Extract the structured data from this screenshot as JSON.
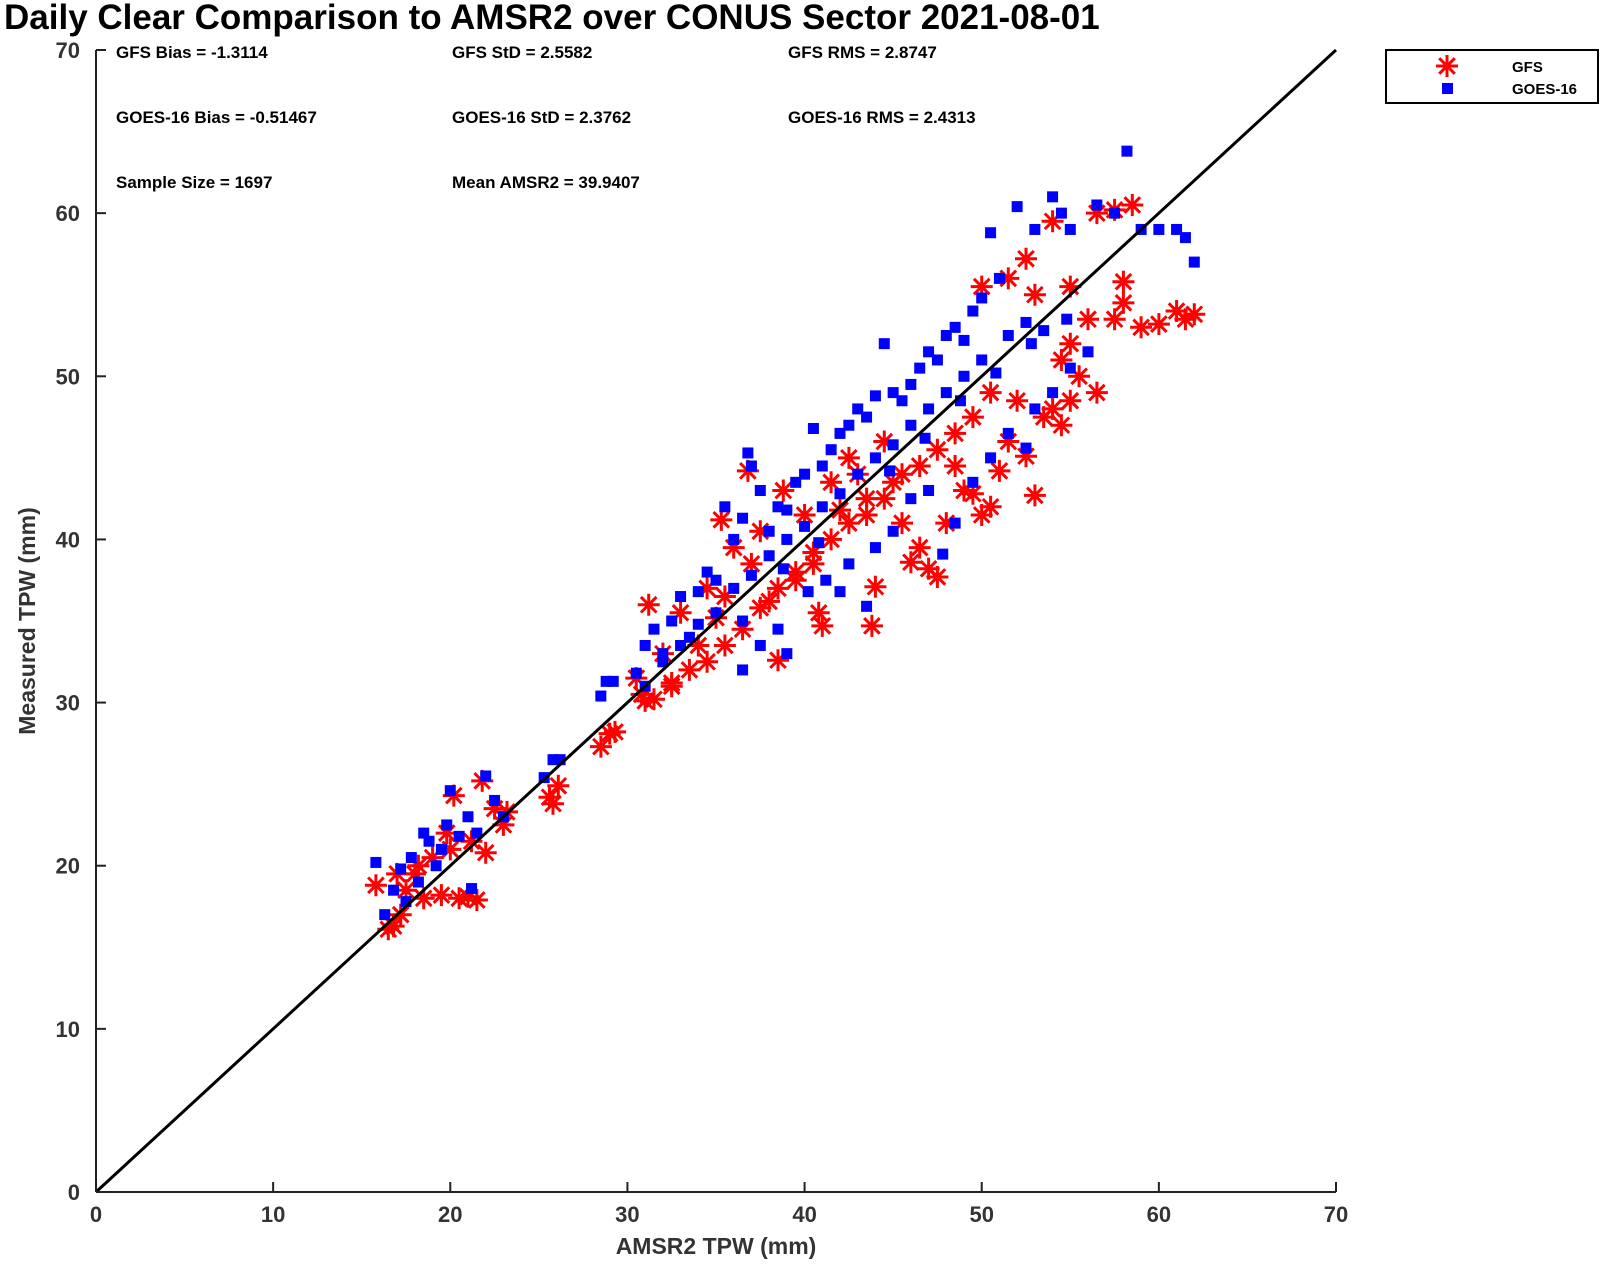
{
  "chart_data": {
    "type": "scatter",
    "title": "Daily Clear Comparison to AMSR2 over CONUS Sector 2021-08-01",
    "xlabel": "AMSR2 TPW (mm)",
    "ylabel": "Measured TPW (mm)",
    "xlim": [
      0,
      70
    ],
    "ylim": [
      0,
      70
    ],
    "xticks": [
      "0",
      "10",
      "20",
      "30",
      "40",
      "50",
      "60",
      "70"
    ],
    "yticks": [
      "0",
      "10",
      "20",
      "30",
      "40",
      "50",
      "60",
      "70"
    ],
    "reference_line": {
      "x": [
        0,
        70
      ],
      "y": [
        0,
        70
      ],
      "color": "#000000"
    },
    "legend_position": "top-right (outside plot)",
    "annotations": [
      "GFS Bias = -1.3114",
      "GFS StD = 2.5582",
      "GFS RMS = 2.8747",
      "GOES-16 Bias = -0.51467",
      "GOES-16 StD = 2.3762",
      "GOES-16 RMS = 2.4313",
      "Sample Size = 1697",
      "Mean AMSR2 = 39.9407"
    ],
    "series": [
      {
        "name": "GFS",
        "marker": "asterisk",
        "color": "#ff0000",
        "points": [
          [
            15.8,
            18.8
          ],
          [
            16.5,
            16.1
          ],
          [
            16.8,
            16.3
          ],
          [
            17.2,
            17.0
          ],
          [
            17.5,
            18.5
          ],
          [
            18.0,
            19.5
          ],
          [
            18.5,
            18.0
          ],
          [
            19.0,
            20.5
          ],
          [
            19.5,
            18.2
          ],
          [
            20.0,
            21.0
          ],
          [
            20.5,
            18.0
          ],
          [
            21.0,
            18.1
          ],
          [
            21.5,
            17.9
          ],
          [
            20.2,
            24.3
          ],
          [
            21.8,
            25.2
          ],
          [
            22.5,
            23.5
          ],
          [
            23.0,
            22.5
          ],
          [
            21.2,
            21.5
          ],
          [
            19.8,
            22.0
          ],
          [
            18.2,
            20.0
          ],
          [
            17.0,
            19.5
          ],
          [
            22.0,
            20.8
          ],
          [
            23.2,
            23.3
          ],
          [
            25.6,
            24.2
          ],
          [
            26.1,
            24.9
          ],
          [
            25.8,
            23.8
          ],
          [
            28.5,
            27.3
          ],
          [
            29.0,
            28.1
          ],
          [
            29.3,
            28.2
          ],
          [
            30.5,
            31.5
          ],
          [
            31.0,
            30.1
          ],
          [
            31.2,
            36.0
          ],
          [
            32.0,
            33.0
          ],
          [
            32.5,
            31.0
          ],
          [
            33.0,
            35.5
          ],
          [
            34.0,
            33.5
          ],
          [
            34.5,
            37.0
          ],
          [
            35.0,
            35.2
          ],
          [
            35.5,
            36.5
          ],
          [
            35.3,
            41.2
          ],
          [
            36.0,
            39.5
          ],
          [
            36.8,
            44.2
          ],
          [
            37.0,
            38.5
          ],
          [
            37.5,
            40.5
          ],
          [
            38.5,
            32.6
          ],
          [
            38.0,
            36.2
          ],
          [
            38.8,
            43.0
          ],
          [
            39.5,
            37.5
          ],
          [
            40.0,
            41.5
          ],
          [
            40.5,
            39.2
          ],
          [
            40.8,
            35.5
          ],
          [
            41.0,
            34.7
          ],
          [
            41.5,
            43.5
          ],
          [
            42.0,
            41.8
          ],
          [
            42.5,
            45.0
          ],
          [
            43.0,
            44.0
          ],
          [
            43.5,
            42.5
          ],
          [
            43.8,
            34.7
          ],
          [
            44.0,
            37.1
          ],
          [
            44.5,
            46.0
          ],
          [
            45.0,
            43.5
          ],
          [
            45.5,
            41.0
          ],
          [
            46.0,
            38.6
          ],
          [
            46.5,
            39.5
          ],
          [
            47.0,
            38.2
          ],
          [
            47.5,
            37.7
          ],
          [
            48.0,
            41.0
          ],
          [
            48.5,
            44.5
          ],
          [
            49.0,
            43.0
          ],
          [
            49.5,
            42.8
          ],
          [
            50.0,
            41.5
          ],
          [
            50.5,
            42.0
          ],
          [
            51.0,
            44.2
          ],
          [
            51.5,
            46.0
          ],
          [
            52.0,
            48.5
          ],
          [
            52.5,
            45.1
          ],
          [
            53.0,
            42.7
          ],
          [
            53.5,
            47.5
          ],
          [
            54.0,
            48.0
          ],
          [
            54.5,
            47.0
          ],
          [
            55.0,
            48.5
          ],
          [
            55.5,
            50.0
          ],
          [
            56.5,
            49.0
          ],
          [
            57.5,
            53.5
          ],
          [
            58.0,
            54.5
          ],
          [
            59.0,
            53.0
          ],
          [
            60.0,
            53.2
          ],
          [
            61.0,
            54.0
          ],
          [
            61.5,
            53.5
          ],
          [
            62.0,
            53.8
          ],
          [
            50.0,
            55.5
          ],
          [
            51.5,
            56.0
          ],
          [
            52.5,
            57.2
          ],
          [
            53.0,
            55.0
          ],
          [
            54.0,
            59.5
          ],
          [
            55.0,
            55.5
          ],
          [
            56.5,
            60.0
          ],
          [
            57.5,
            60.2
          ],
          [
            58.5,
            60.5
          ],
          [
            58.0,
            55.8
          ],
          [
            56.0,
            53.5
          ],
          [
            55.0,
            52.0
          ],
          [
            54.5,
            51.0
          ],
          [
            50.5,
            49.0
          ],
          [
            49.5,
            47.5
          ],
          [
            48.5,
            46.5
          ],
          [
            47.5,
            45.5
          ],
          [
            46.5,
            44.5
          ],
          [
            45.5,
            44.0
          ],
          [
            44.5,
            42.5
          ],
          [
            43.5,
            41.5
          ],
          [
            42.5,
            41.0
          ],
          [
            41.5,
            40.0
          ],
          [
            40.5,
            38.5
          ],
          [
            39.5,
            38.0
          ],
          [
            38.5,
            37.0
          ],
          [
            37.5,
            35.8
          ],
          [
            36.5,
            34.5
          ],
          [
            35.5,
            33.5
          ],
          [
            34.5,
            32.5
          ],
          [
            33.5,
            32.0
          ],
          [
            32.5,
            31.2
          ],
          [
            31.5,
            30.2
          ],
          [
            30.8,
            30.5
          ]
        ]
      },
      {
        "name": "GOES-16",
        "marker": "square",
        "color": "#0000ff",
        "points": [
          [
            15.8,
            20.2
          ],
          [
            16.3,
            17.0
          ],
          [
            16.8,
            18.5
          ],
          [
            17.2,
            19.8
          ],
          [
            17.8,
            20.5
          ],
          [
            18.2,
            19.0
          ],
          [
            18.8,
            21.5
          ],
          [
            19.2,
            20.0
          ],
          [
            19.8,
            22.5
          ],
          [
            20.0,
            24.6
          ],
          [
            20.5,
            21.8
          ],
          [
            21.0,
            23.0
          ],
          [
            21.5,
            22.0
          ],
          [
            22.0,
            25.5
          ],
          [
            22.5,
            24.0
          ],
          [
            23.0,
            23.0
          ],
          [
            21.2,
            18.6
          ],
          [
            19.5,
            21.0
          ],
          [
            18.5,
            22.0
          ],
          [
            17.5,
            17.8
          ],
          [
            25.3,
            25.4
          ],
          [
            25.8,
            26.5
          ],
          [
            26.2,
            26.5
          ],
          [
            28.5,
            30.4
          ],
          [
            28.8,
            31.3
          ],
          [
            29.2,
            31.3
          ],
          [
            30.5,
            31.8
          ],
          [
            31.0,
            33.5
          ],
          [
            31.5,
            34.5
          ],
          [
            32.0,
            32.5
          ],
          [
            32.5,
            35.0
          ],
          [
            33.0,
            36.5
          ],
          [
            33.5,
            34.0
          ],
          [
            34.0,
            36.8
          ],
          [
            34.5,
            38.0
          ],
          [
            35.0,
            37.5
          ],
          [
            35.5,
            42.0
          ],
          [
            36.0,
            40.0
          ],
          [
            36.5,
            41.3
          ],
          [
            36.8,
            45.3
          ],
          [
            37.0,
            44.5
          ],
          [
            37.5,
            43.0
          ],
          [
            38.0,
            40.5
          ],
          [
            38.5,
            42.0
          ],
          [
            39.0,
            41.8
          ],
          [
            39.5,
            43.5
          ],
          [
            40.0,
            44.0
          ],
          [
            40.5,
            46.8
          ],
          [
            41.0,
            44.5
          ],
          [
            41.5,
            45.5
          ],
          [
            42.0,
            46.5
          ],
          [
            42.5,
            47.0
          ],
          [
            43.0,
            48.0
          ],
          [
            43.5,
            47.5
          ],
          [
            44.0,
            48.8
          ],
          [
            44.5,
            52.0
          ],
          [
            45.0,
            49.0
          ],
          [
            45.5,
            48.5
          ],
          [
            46.0,
            49.5
          ],
          [
            46.5,
            50.5
          ],
          [
            47.0,
            51.5
          ],
          [
            47.5,
            51.0
          ],
          [
            48.0,
            52.5
          ],
          [
            48.5,
            53.0
          ],
          [
            49.0,
            52.2
          ],
          [
            49.5,
            54.0
          ],
          [
            50.0,
            54.8
          ],
          [
            50.5,
            58.8
          ],
          [
            51.0,
            56.0
          ],
          [
            52.0,
            60.4
          ],
          [
            53.0,
            59.0
          ],
          [
            54.0,
            61.0
          ],
          [
            54.5,
            60.0
          ],
          [
            55.0,
            59.0
          ],
          [
            56.5,
            60.5
          ],
          [
            57.5,
            60.0
          ],
          [
            58.2,
            63.8
          ],
          [
            59.0,
            59.0
          ],
          [
            60.0,
            59.0
          ],
          [
            61.0,
            59.0
          ],
          [
            61.5,
            58.5
          ],
          [
            62.0,
            57.0
          ],
          [
            39.0,
            33.0
          ],
          [
            40.2,
            36.8
          ],
          [
            41.2,
            37.5
          ],
          [
            42.0,
            36.8
          ],
          [
            42.5,
            38.5
          ],
          [
            43.5,
            35.9
          ],
          [
            44.0,
            39.5
          ],
          [
            45.0,
            40.5
          ],
          [
            46.0,
            42.5
          ],
          [
            47.0,
            43.0
          ],
          [
            47.8,
            39.1
          ],
          [
            48.5,
            41.0
          ],
          [
            49.5,
            43.5
          ],
          [
            50.5,
            45.0
          ],
          [
            51.5,
            46.5
          ],
          [
            52.5,
            45.6
          ],
          [
            53.0,
            48.0
          ],
          [
            54.0,
            49.0
          ],
          [
            55.0,
            50.5
          ],
          [
            56.0,
            51.5
          ],
          [
            53.5,
            52.8
          ],
          [
            52.5,
            53.3
          ],
          [
            51.5,
            52.5
          ],
          [
            50.0,
            51.0
          ],
          [
            49.0,
            50.0
          ],
          [
            48.0,
            49.0
          ],
          [
            47.0,
            48.0
          ],
          [
            46.0,
            47.0
          ],
          [
            45.0,
            45.8
          ],
          [
            44.0,
            45.0
          ],
          [
            43.0,
            44.0
          ],
          [
            42.0,
            42.8
          ],
          [
            41.0,
            42.0
          ],
          [
            40.0,
            40.8
          ],
          [
            39.0,
            40.0
          ],
          [
            38.0,
            39.0
          ],
          [
            37.0,
            37.8
          ],
          [
            36.0,
            37.0
          ],
          [
            35.0,
            35.5
          ],
          [
            34.0,
            34.8
          ],
          [
            33.0,
            33.5
          ],
          [
            32.0,
            33.0
          ],
          [
            31.0,
            31.0
          ],
          [
            36.5,
            35.0
          ],
          [
            38.8,
            38.2
          ],
          [
            40.8,
            39.8
          ],
          [
            44.8,
            44.2
          ],
          [
            46.8,
            46.2
          ],
          [
            48.8,
            48.5
          ],
          [
            50.8,
            50.2
          ],
          [
            52.8,
            52.0
          ],
          [
            54.8,
            53.5
          ],
          [
            36.5,
            32.0
          ],
          [
            37.5,
            33.5
          ],
          [
            38.5,
            34.5
          ]
        ]
      }
    ]
  }
}
